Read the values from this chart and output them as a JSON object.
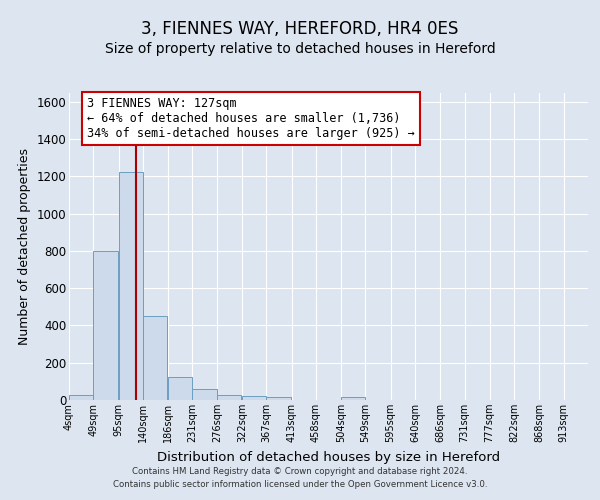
{
  "title1": "3, FIENNES WAY, HEREFORD, HR4 0ES",
  "title2": "Size of property relative to detached houses in Hereford",
  "xlabel": "Distribution of detached houses by size in Hereford",
  "ylabel": "Number of detached properties",
  "bin_edges": [
    4,
    49,
    95,
    140,
    186,
    231,
    276,
    322,
    367,
    413,
    458,
    504,
    549,
    595,
    640,
    686,
    731,
    777,
    822,
    868,
    913
  ],
  "bar_heights": [
    25,
    800,
    1225,
    450,
    125,
    60,
    25,
    20,
    15,
    0,
    0,
    15,
    0,
    0,
    0,
    0,
    0,
    0,
    0,
    0
  ],
  "bar_color": "#ccdaeb",
  "bar_edge_color": "#6a9ec0",
  "property_size": 127,
  "red_line_color": "#aa0000",
  "annotation_line1": "3 FIENNES WAY: 127sqm",
  "annotation_line2": "← 64% of detached houses are smaller (1,736)",
  "annotation_line3": "34% of semi-detached houses are larger (925) →",
  "annotation_box_color": "white",
  "annotation_box_edge_color": "#cc0000",
  "ylim": [
    0,
    1650
  ],
  "xlim_left": 4,
  "xlim_right": 958,
  "background_color": "#dde6f0",
  "plot_background_color": "#dde6f0",
  "footer1": "Contains HM Land Registry data © Crown copyright and database right 2024.",
  "footer2": "Contains public sector information licensed under the Open Government Licence v3.0.",
  "title1_fontsize": 12,
  "title2_fontsize": 10,
  "xlabel_fontsize": 9.5,
  "ylabel_fontsize": 9,
  "annotation_fontsize": 8.5,
  "tick_labels": [
    "4sqm",
    "49sqm",
    "95sqm",
    "140sqm",
    "186sqm",
    "231sqm",
    "276sqm",
    "322sqm",
    "367sqm",
    "413sqm",
    "458sqm",
    "504sqm",
    "549sqm",
    "595sqm",
    "640sqm",
    "686sqm",
    "731sqm",
    "777sqm",
    "822sqm",
    "868sqm",
    "913sqm"
  ],
  "yticks": [
    0,
    200,
    400,
    600,
    800,
    1000,
    1200,
    1400,
    1600
  ]
}
